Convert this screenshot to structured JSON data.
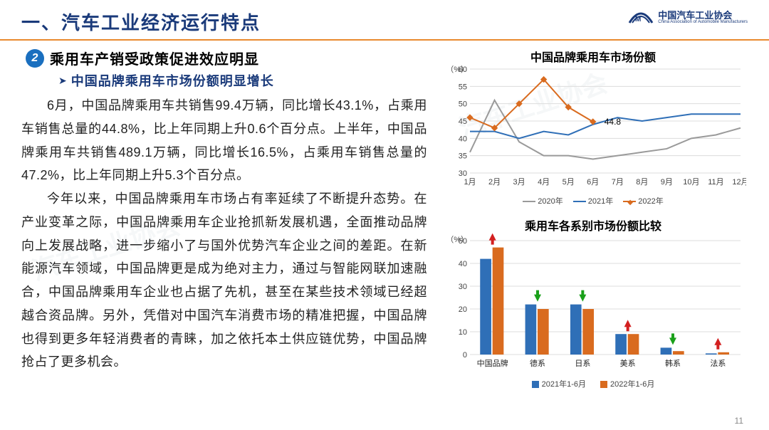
{
  "header": {
    "title": "一、汽车工业经济运行特点",
    "logo_cn": "中国汽车工业协会",
    "logo_en": "China Association of Automobile Manufacturers"
  },
  "subhead": {
    "num": "2",
    "text": "乘用车产销受政策促进效应明显",
    "bullet": "中国品牌乘用车市场份额明显增长"
  },
  "paragraphs": [
    "6月，中国品牌乘用车共销售99.4万辆，同比增长43.1%，占乘用车销售总量的44.8%，比上年同期上升0.6个百分点。上半年，中国品牌乘用车共销售489.1万辆，同比增长16.5%，占乘用车销售总量的47.2%，比上年同期上升5.3个百分点。",
    "今年以来，中国品牌乘用车市场占有率延续了不断提升态势。在产业变革之际，中国品牌乘用车企业抢抓新发展机遇，全面推动品牌向上发展战略，进一步缩小了与国外优势汽车企业之间的差距。在新能源汽车领域，中国品牌更是成为绝对主力，通过与智能网联加速融合，中国品牌乘用车企业也占据了先机，甚至在某些技术领域已经超越合资品牌。另外，凭借对中国汽车消费市场的精准把握，中国品牌也得到更多年轻消费者的青睐，加之依托本土供应链优势，中国品牌抢占了更多机会。"
  ],
  "line_chart": {
    "title": "中国品牌乘用车市场份额",
    "y_unit": "（%）",
    "ylim": [
      30,
      60
    ],
    "ytick_step": 5,
    "months": [
      "1月",
      "2月",
      "3月",
      "4月",
      "5月",
      "6月",
      "7月",
      "8月",
      "9月",
      "10月",
      "11月",
      "12月"
    ],
    "series": [
      {
        "name": "2020年",
        "color": "#9a9a9a",
        "marker": "none",
        "values": [
          36,
          51,
          39,
          35,
          35,
          34,
          35,
          36,
          37,
          40,
          41,
          43
        ]
      },
      {
        "name": "2021年",
        "color": "#2f6fb7",
        "marker": "none",
        "values": [
          42,
          42,
          40,
          42,
          41,
          44,
          46,
          45,
          46,
          47,
          47,
          47
        ]
      },
      {
        "name": "2022年",
        "color": "#d96b1f",
        "marker": "diamond",
        "values": [
          46,
          43,
          50,
          57,
          49,
          44.8
        ]
      }
    ],
    "callout": {
      "month_index": 5,
      "label": "44.8"
    },
    "grid_color": "#dcdcdc",
    "background": "#ffffff",
    "font_size_axis": 11,
    "font_size_title": 16
  },
  "bar_chart": {
    "title": "乘用车各系别市场份额比较",
    "y_unit": "（%）",
    "ylim": [
      0,
      50
    ],
    "ytick_step": 10,
    "categories": [
      "中国品牌",
      "德系",
      "日系",
      "美系",
      "韩系",
      "法系"
    ],
    "series": [
      {
        "name": "2021年1-6月",
        "color": "#2f6fb7",
        "values": [
          42,
          22,
          22,
          9,
          3,
          0.5
        ]
      },
      {
        "name": "2022年1-6月",
        "color": "#d96b1f",
        "values": [
          47,
          20,
          20,
          9,
          1.5,
          1
        ]
      }
    ],
    "arrows": [
      "up",
      "down",
      "down",
      "up",
      "down",
      "up"
    ],
    "arrow_up_color": "#d32020",
    "arrow_down_color": "#1aa01a",
    "grid_color": "#dcdcdc",
    "background": "#ffffff",
    "bar_group_width": 0.55,
    "font_size_axis": 11,
    "font_size_title": 16
  },
  "page_number": "11"
}
